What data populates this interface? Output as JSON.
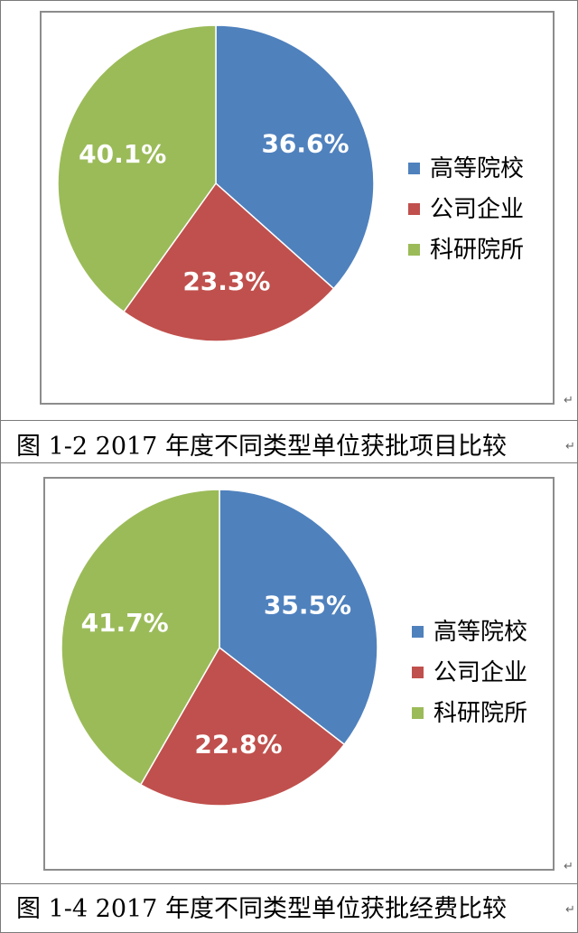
{
  "chart_data": [
    {
      "type": "pie",
      "categories": [
        "高等院校",
        "公司企业",
        "科研院所"
      ],
      "values": [
        36.6,
        23.3,
        40.1
      ],
      "value_labels": [
        "36.6%",
        "23.3%",
        "40.1%"
      ],
      "colors": [
        "#4f81bd",
        "#c0504d",
        "#9bbb59"
      ],
      "legend_position": "right",
      "caption": "图 1-2 2017 年度不同类型单位获批项目比较"
    },
    {
      "type": "pie",
      "categories": [
        "高等院校",
        "公司企业",
        "科研院所"
      ],
      "values": [
        35.5,
        22.8,
        41.7
      ],
      "value_labels": [
        "35.5%",
        "22.8%",
        "41.7%"
      ],
      "colors": [
        "#4f81bd",
        "#c0504d",
        "#9bbb59"
      ],
      "legend_position": "right",
      "caption": "图 1-4 2017 年度不同类型单位获批经费比较"
    }
  ],
  "return_mark": "↵"
}
